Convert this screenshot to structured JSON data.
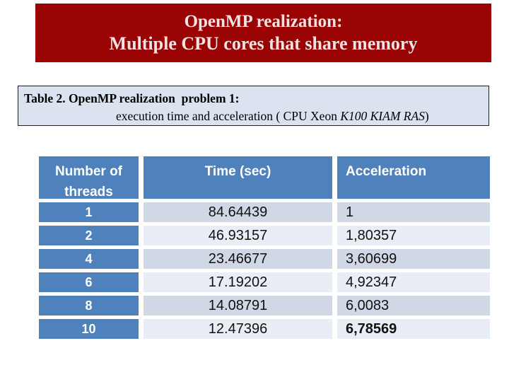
{
  "banner": {
    "title_line1": "OpenMP realization:",
    "title_line2": "Multiple CPU cores that share memory"
  },
  "caption": {
    "line1": "Table 2. OpenMP realization  problem 1:",
    "line2_prefix": "execution time and acceleration ( CPU Xeon ",
    "line2_italic": "K100 KIAM RAS",
    "line2_suffix": ")"
  },
  "table": {
    "columns": [
      "Number of threads",
      "Time (sec)",
      "Acceleration"
    ],
    "rows": [
      {
        "threads": "1",
        "time": "84.64439",
        "acceleration": "1"
      },
      {
        "threads": "2",
        "time": "46.93157",
        "acceleration": "1,80357"
      },
      {
        "threads": "4",
        "time": "23.46677",
        "acceleration": "3,60699"
      },
      {
        "threads": "6",
        "time": "17.19202",
        "acceleration": "4,92347"
      },
      {
        "threads": "8",
        "time": "14.08791",
        "acceleration": "6,0083"
      },
      {
        "threads": "10",
        "time": "12.47396",
        "acceleration": "6,78569"
      }
    ]
  },
  "colors": {
    "banner_red": "#9b0404",
    "banner_text": "#f2e3e3",
    "header_blue": "#4f81bd",
    "band_dark": "#d0d7e5",
    "band_light": "#e9edf5",
    "caption_bg": "#dbe3f1"
  }
}
